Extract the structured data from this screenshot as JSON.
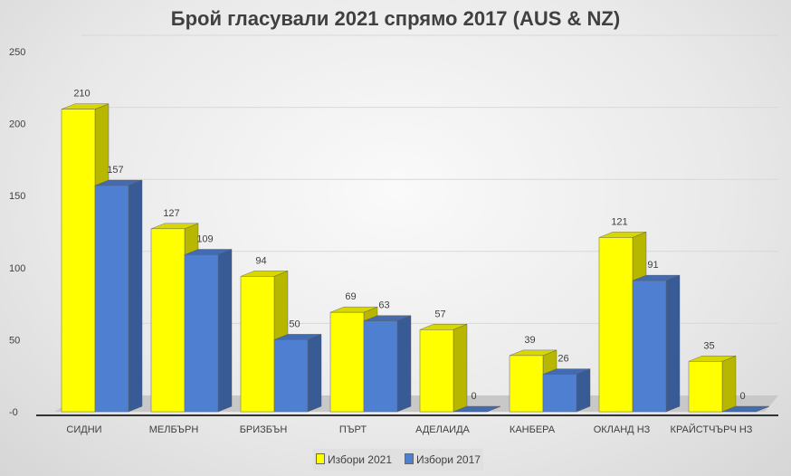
{
  "chart_data": {
    "type": "bar",
    "title": "Брой гласували 2021 спрямо 2017 (AUS & NZ)",
    "categories": [
      "СИДНИ",
      "МЕЛБЪРН",
      "БРИЗБЪН",
      "ПЪРТ",
      "АДЕЛАИДА",
      "КАНБЕРА",
      "ОКЛАНД НЗ",
      "КРАЙСТЧЪРЧ НЗ"
    ],
    "series": [
      {
        "name": "Избори 2021",
        "color": "#ffff00",
        "values": [
          210,
          127,
          94,
          69,
          57,
          39,
          121,
          35
        ]
      },
      {
        "name": "Избори 2017",
        "color": "#4f7fd0",
        "values": [
          157,
          109,
          50,
          63,
          0,
          26,
          91,
          0
        ]
      }
    ],
    "yticks": [
      "-0",
      "50",
      "100",
      "150",
      "200",
      "250"
    ],
    "ylim": [
      0,
      250
    ],
    "xlabel": "",
    "ylabel": "",
    "grid": true,
    "legend": "bottom"
  }
}
